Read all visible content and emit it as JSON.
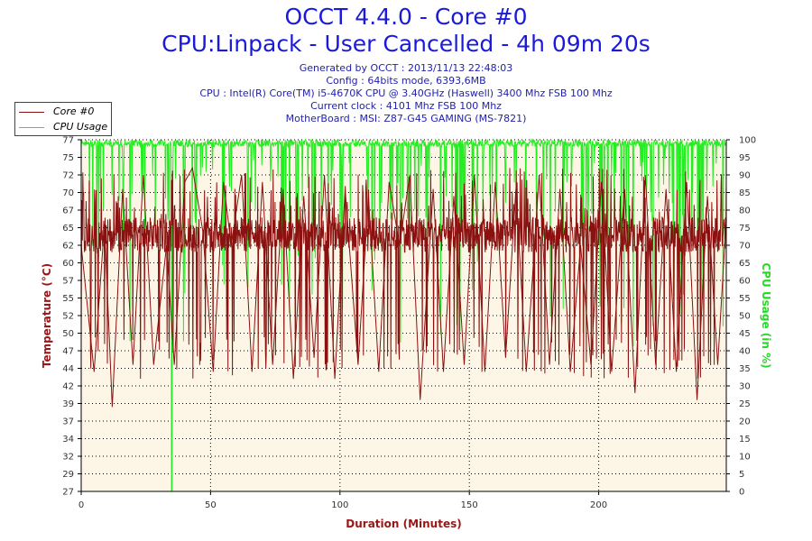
{
  "title": "OCCT 4.4.0 - Core #0",
  "subtitle": "CPU:Linpack - User Cancelled - 4h 09m 20s",
  "info": [
    "Generated by OCCT : 2013/11/13 22:48:03",
    "Config : 64bits mode, 6393,6MB",
    "CPU : Intel(R) Core(TM) i5-4670K CPU @ 3.40GHz (Haswell) 3400 Mhz FSB 100 Mhz",
    "Current clock : 4101 Mhz FSB 100 Mhz",
    "MotherBoard : MSI: Z87-G45 GAMING (MS-7821)"
  ],
  "legend": {
    "core": "Core #0",
    "cpu": "CPU Usage"
  },
  "colors": {
    "temperature": "#8b1010",
    "cpu_usage": "#22ee22",
    "plot_bg": "#fdf6e6",
    "title": "#1a1adc",
    "info": "#2222aa",
    "axis_title_temp": "#9a1515",
    "axis_title_cpu": "#22dd22"
  },
  "chart_data": {
    "type": "line",
    "title": "OCCT 4.4.0 - Core #0",
    "xlabel": "Duration (Minutes)",
    "ylabel_left": "Temperature (°C)",
    "ylabel_right": "CPU Usage (in %)",
    "xlim": [
      0,
      249.3
    ],
    "ylim_left": [
      27,
      77
    ],
    "ylim_right": [
      0,
      100
    ],
    "x_ticks": [
      0,
      50,
      100,
      150,
      200
    ],
    "y_ticks_left": [
      27,
      29,
      32,
      34,
      37,
      39,
      42,
      44,
      47,
      50,
      52,
      55,
      57,
      60,
      62,
      65,
      67,
      70,
      72,
      75,
      77
    ],
    "y_ticks_right": [
      0,
      5,
      10,
      15,
      20,
      25,
      30,
      35,
      40,
      45,
      50,
      55,
      60,
      65,
      70,
      75,
      80,
      85,
      90,
      95,
      100
    ],
    "grid": true,
    "legend_position": "top-left",
    "series": [
      {
        "name": "Core #0",
        "axis": "left",
        "color": "#8b1010",
        "typical_range": [
          61,
          66
        ],
        "x": [
          0,
          5,
          9,
          12,
          16,
          20,
          24,
          28,
          33,
          36,
          40,
          43,
          47,
          51,
          55,
          58,
          62,
          66,
          70,
          74,
          78,
          82,
          86,
          90,
          94,
          98,
          102,
          107,
          111,
          115,
          119,
          123,
          127,
          131,
          136,
          140,
          144,
          148,
          152,
          156,
          160,
          164,
          168,
          172,
          177,
          181,
          185,
          189,
          193,
          197,
          201,
          205,
          210,
          214,
          218,
          222,
          226,
          230,
          234,
          238,
          242,
          246,
          249
        ],
        "y": [
          62,
          44,
          65,
          39,
          70,
          45,
          72,
          45,
          62,
          45,
          71,
          73,
          64,
          44,
          71,
          62,
          72,
          44,
          71,
          45,
          70,
          43,
          69,
          46,
          72,
          43,
          70,
          45,
          69,
          44,
          71,
          62,
          72,
          40,
          70,
          44,
          69,
          45,
          72,
          44,
          71,
          46,
          70,
          44,
          72,
          45,
          70,
          44,
          62,
          45,
          71,
          44,
          70,
          41,
          72,
          45,
          70,
          44,
          71,
          40,
          69,
          45,
          64
        ]
      },
      {
        "name": "CPU Usage",
        "axis": "right",
        "color": "#22ee22",
        "typical_range": [
          98,
          100
        ],
        "x": [
          0,
          10,
          20,
          30,
          35,
          40,
          50,
          60,
          70,
          80,
          90,
          100,
          110,
          120,
          130,
          140,
          150,
          160,
          170,
          180,
          190,
          200,
          210,
          220,
          230,
          240,
          249
        ],
        "y": [
          100,
          100,
          100,
          100,
          0,
          100,
          100,
          100,
          100,
          100,
          100,
          100,
          100,
          100,
          100,
          100,
          100,
          100,
          100,
          100,
          100,
          100,
          100,
          100,
          100,
          100,
          99
        ]
      }
    ]
  }
}
